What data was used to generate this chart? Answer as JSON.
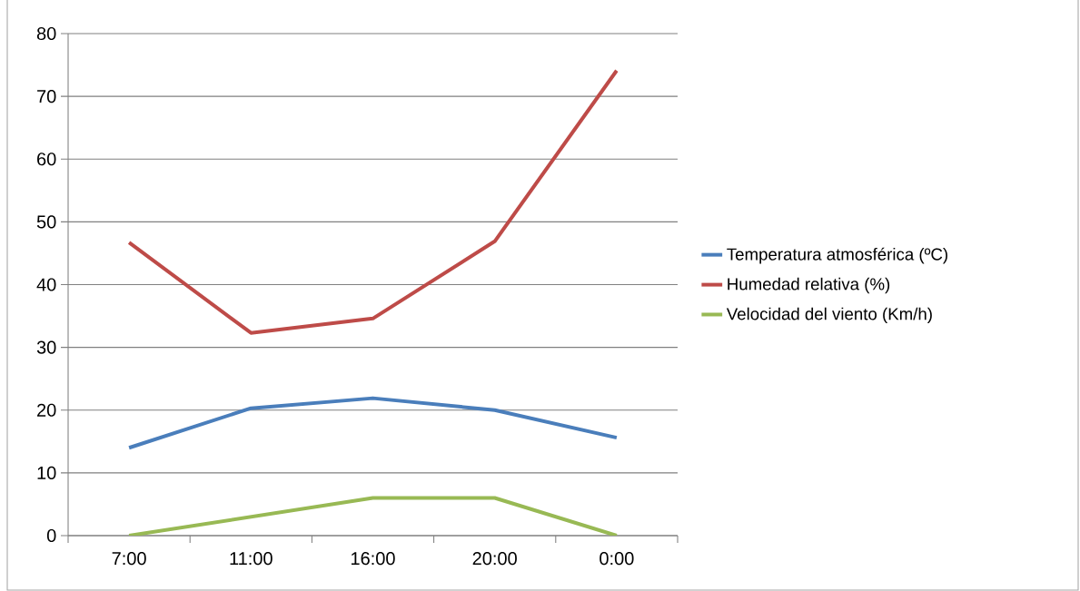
{
  "chart_data": {
    "type": "line",
    "categories": [
      "7:00",
      "11:00",
      "16:00",
      "20:00",
      "0:00"
    ],
    "series": [
      {
        "name": "Temperatura atmosférica (ºC)",
        "color": "#4a7ebb",
        "values": [
          14.0,
          20.3,
          21.9,
          20.0,
          15.6
        ]
      },
      {
        "name": "Humedad relativa (%)",
        "color": "#be4b48",
        "values": [
          46.7,
          32.3,
          34.6,
          46.9,
          74.1
        ]
      },
      {
        "name": "Velocidad del viento (Km/h)",
        "color": "#98b954",
        "values": [
          0,
          3,
          6,
          6,
          0
        ]
      }
    ],
    "ylim": [
      0,
      80
    ],
    "yticks": [
      0,
      10,
      20,
      30,
      40,
      50,
      60,
      70,
      80
    ],
    "grid": "y",
    "legend": "right",
    "marker": "none",
    "line_style": "solid"
  }
}
